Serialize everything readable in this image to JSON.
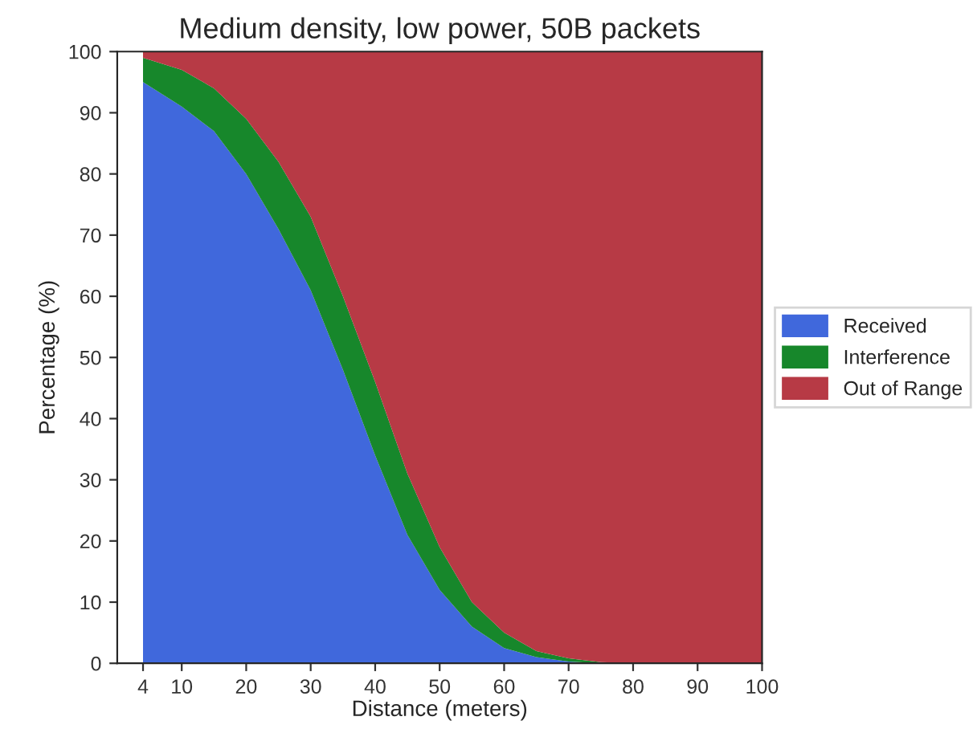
{
  "chart_data": {
    "type": "area",
    "stacked": true,
    "title": "Medium density, low power, 50B packets",
    "xlabel": "Distance (meters)",
    "ylabel": "Percentage (%)",
    "x": [
      4,
      10,
      15,
      20,
      25,
      30,
      35,
      40,
      45,
      50,
      55,
      60,
      65,
      70,
      75,
      80,
      85,
      90,
      95,
      100
    ],
    "series": [
      {
        "name": "Received",
        "color": "#4068dc",
        "values": [
          95,
          91,
          87,
          80,
          71,
          61,
          48,
          34,
          21,
          12,
          6,
          2.5,
          1,
          0.3,
          0,
          0,
          0,
          0,
          0,
          0
        ]
      },
      {
        "name": "Interference",
        "color": "#17872b",
        "values": [
          4,
          6,
          7,
          9,
          11,
          12,
          12,
          12,
          10,
          7,
          4,
          2.5,
          1,
          0.5,
          0.2,
          0,
          0,
          0,
          0,
          0
        ]
      },
      {
        "name": "Out of Range",
        "color": "#b73a45",
        "values": [
          1,
          3,
          6,
          11,
          18,
          27,
          40,
          54,
          69,
          81,
          90,
          95,
          98,
          99.2,
          99.8,
          100,
          100,
          100,
          100,
          100
        ]
      }
    ],
    "xlim": [
      0,
      100
    ],
    "xticks": [
      4,
      10,
      20,
      30,
      40,
      50,
      60,
      70,
      80,
      90,
      100
    ],
    "ylim": [
      0,
      100
    ],
    "yticks": [
      0,
      10,
      20,
      30,
      40,
      50,
      60,
      70,
      80,
      90,
      100
    ],
    "grid": false,
    "legend": "right"
  }
}
